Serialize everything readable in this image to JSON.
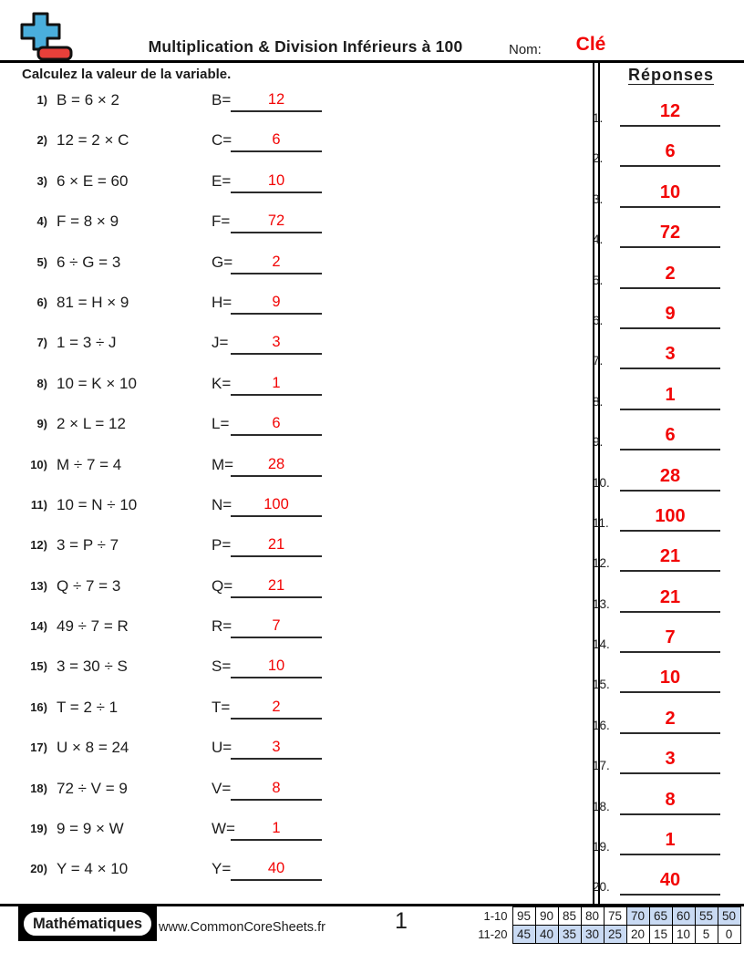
{
  "header": {
    "title": "Multiplication & Division Inférieurs à 100",
    "name_label": "Nom:",
    "name_value": "Clé"
  },
  "instruction": "Calculez la valeur de la variable.",
  "problems": [
    {
      "num": "1)",
      "equation": "B = 6 × 2",
      "var": "B",
      "answer": "12"
    },
    {
      "num": "2)",
      "equation": "12 = 2 × C",
      "var": "C",
      "answer": "6"
    },
    {
      "num": "3)",
      "equation": "6 × E = 60",
      "var": "E",
      "answer": "10"
    },
    {
      "num": "4)",
      "equation": "F = 8 × 9",
      "var": "F",
      "answer": "72"
    },
    {
      "num": "5)",
      "equation": "6 ÷ G = 3",
      "var": "G",
      "answer": "2"
    },
    {
      "num": "6)",
      "equation": "81 = H × 9",
      "var": "H",
      "answer": "9"
    },
    {
      "num": "7)",
      "equation": "1 = 3 ÷ J",
      "var": "J",
      "answer": "3"
    },
    {
      "num": "8)",
      "equation": "10 = K × 10",
      "var": "K",
      "answer": "1"
    },
    {
      "num": "9)",
      "equation": "2 × L = 12",
      "var": "L",
      "answer": "6"
    },
    {
      "num": "10)",
      "equation": "M ÷ 7 = 4",
      "var": "M",
      "answer": "28"
    },
    {
      "num": "11)",
      "equation": "10 = N ÷ 10",
      "var": "N",
      "answer": "100"
    },
    {
      "num": "12)",
      "equation": "3 = P ÷ 7",
      "var": "P",
      "answer": "21"
    },
    {
      "num": "13)",
      "equation": "Q ÷ 7 = 3",
      "var": "Q",
      "answer": "21"
    },
    {
      "num": "14)",
      "equation": "49 ÷ 7 = R",
      "var": "R",
      "answer": "7"
    },
    {
      "num": "15)",
      "equation": "3 = 30 ÷ S",
      "var": "S",
      "answer": "10"
    },
    {
      "num": "16)",
      "equation": "T = 2 ÷ 1",
      "var": "T",
      "answer": "2"
    },
    {
      "num": "17)",
      "equation": "U × 8 = 24",
      "var": "U",
      "answer": "3"
    },
    {
      "num": "18)",
      "equation": "72 ÷ V = 9",
      "var": "V",
      "answer": "8"
    },
    {
      "num": "19)",
      "equation": "9 = 9 × W",
      "var": "W",
      "answer": "1"
    },
    {
      "num": "20)",
      "equation": "Y = 4 × 10",
      "var": "Y",
      "answer": "40"
    }
  ],
  "answers_column": {
    "title": "Réponses",
    "items": [
      {
        "num": "1.",
        "value": "12"
      },
      {
        "num": "2.",
        "value": "6"
      },
      {
        "num": "3.",
        "value": "10"
      },
      {
        "num": "4.",
        "value": "72"
      },
      {
        "num": "5.",
        "value": "2"
      },
      {
        "num": "6.",
        "value": "9"
      },
      {
        "num": "7.",
        "value": "3"
      },
      {
        "num": "8.",
        "value": "1"
      },
      {
        "num": "9.",
        "value": "6"
      },
      {
        "num": "10.",
        "value": "28"
      },
      {
        "num": "11.",
        "value": "100"
      },
      {
        "num": "12.",
        "value": "21"
      },
      {
        "num": "13.",
        "value": "21"
      },
      {
        "num": "14.",
        "value": "7"
      },
      {
        "num": "15.",
        "value": "10"
      },
      {
        "num": "16.",
        "value": "2"
      },
      {
        "num": "17.",
        "value": "3"
      },
      {
        "num": "18.",
        "value": "8"
      },
      {
        "num": "19.",
        "value": "1"
      },
      {
        "num": "20.",
        "value": "40"
      }
    ]
  },
  "footer": {
    "brand": "Mathématiques",
    "url": "www.CommonCoreSheets.fr",
    "page_number": "1",
    "grade_table": {
      "rows": [
        {
          "label": "1-10",
          "cells": [
            {
              "v": "95",
              "shaded": false
            },
            {
              "v": "90",
              "shaded": false
            },
            {
              "v": "85",
              "shaded": false
            },
            {
              "v": "80",
              "shaded": false
            },
            {
              "v": "75",
              "shaded": false
            },
            {
              "v": "70",
              "shaded": true
            },
            {
              "v": "65",
              "shaded": true
            },
            {
              "v": "60",
              "shaded": true
            },
            {
              "v": "55",
              "shaded": true
            },
            {
              "v": "50",
              "shaded": true
            }
          ]
        },
        {
          "label": "11-20",
          "cells": [
            {
              "v": "45",
              "shaded": true
            },
            {
              "v": "40",
              "shaded": true
            },
            {
              "v": "35",
              "shaded": true
            },
            {
              "v": "30",
              "shaded": true
            },
            {
              "v": "25",
              "shaded": true
            },
            {
              "v": "20",
              "shaded": false
            },
            {
              "v": "15",
              "shaded": false
            },
            {
              "v": "10",
              "shaded": false
            },
            {
              "v": "5",
              "shaded": false
            },
            {
              "v": "0",
              "shaded": false
            }
          ]
        }
      ]
    }
  },
  "icons": {
    "logo": "plus-minus-math-logo"
  },
  "colors": {
    "answer_red": "#f20505",
    "cell_blue": "#c9daf3",
    "logo_plus_blue": "#4aaedc",
    "logo_minus_red": "#e8403a"
  }
}
